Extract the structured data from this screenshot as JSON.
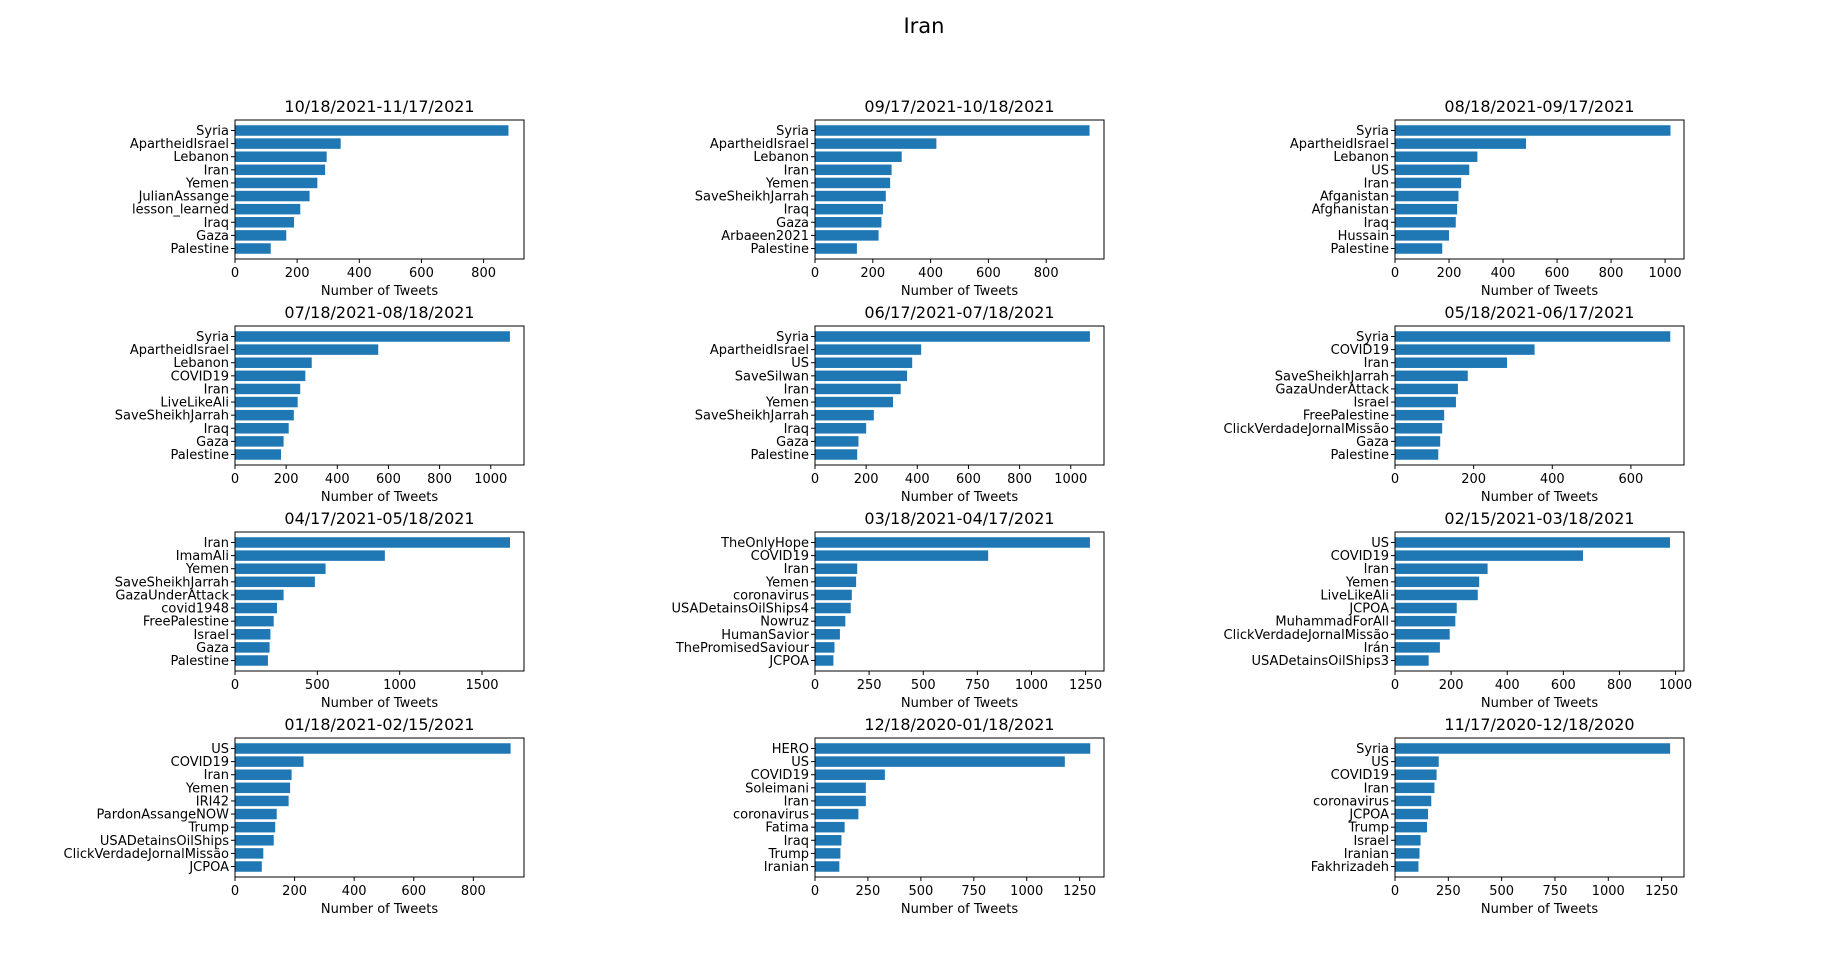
{
  "figure": {
    "title": "Iran"
  },
  "colors": {
    "bar": "#1f77b4",
    "axis": "#000000",
    "background": "#ffffff"
  },
  "chart_data": [
    {
      "type": "bar",
      "orientation": "horizontal",
      "title": "10/18/2021-11/17/2021",
      "xlabel": "Number of Tweets",
      "ylabel": "",
      "categories": [
        "Syria",
        "ApartheidIsrael",
        "Lebanon",
        "Iran",
        "Yemen",
        "JulianAssange",
        "lesson_learned",
        "Iraq",
        "Gaza",
        "Palestine"
      ],
      "values": [
        880,
        340,
        295,
        290,
        265,
        240,
        210,
        190,
        165,
        115
      ],
      "xlim": [
        0,
        930
      ],
      "xticks": [
        0,
        200,
        400,
        600,
        800
      ],
      "grid": false
    },
    {
      "type": "bar",
      "orientation": "horizontal",
      "title": "09/17/2021-10/18/2021",
      "xlabel": "Number of Tweets",
      "ylabel": "",
      "categories": [
        "Syria",
        "ApartheidIsrael",
        "Lebanon",
        "Iran",
        "Yemen",
        "SaveSheikhJarrah",
        "Iraq",
        "Gaza",
        "Arbaeen2021",
        "Palestine"
      ],
      "values": [
        950,
        420,
        300,
        265,
        260,
        245,
        235,
        230,
        220,
        145
      ],
      "xlim": [
        0,
        1000
      ],
      "xticks": [
        0,
        200,
        400,
        600,
        800
      ],
      "grid": false
    },
    {
      "type": "bar",
      "orientation": "horizontal",
      "title": "08/18/2021-09/17/2021",
      "xlabel": "Number of Tweets",
      "ylabel": "",
      "categories": [
        "Syria",
        "ApartheidIsrael",
        "Lebanon",
        "US",
        "Iran",
        "Afganistan",
        "Afghanistan",
        "Iraq",
        "Hussain",
        "Palestine"
      ],
      "values": [
        1020,
        485,
        305,
        275,
        245,
        235,
        230,
        225,
        200,
        175
      ],
      "xlim": [
        0,
        1070
      ],
      "xticks": [
        0,
        200,
        400,
        600,
        800,
        1000
      ],
      "grid": false
    },
    {
      "type": "bar",
      "orientation": "horizontal",
      "title": "07/18/2021-08/18/2021",
      "xlabel": "Number of Tweets",
      "ylabel": "",
      "categories": [
        "Syria",
        "ApartheidIsrael",
        "Lebanon",
        "COVID19",
        "Iran",
        "LiveLikeAli",
        "SaveSheikhJarrah",
        "Iraq",
        "Gaza",
        "Palestine"
      ],
      "values": [
        1075,
        560,
        300,
        275,
        255,
        245,
        230,
        210,
        190,
        180
      ],
      "xlim": [
        0,
        1130
      ],
      "xticks": [
        0,
        200,
        400,
        600,
        800,
        1000
      ],
      "grid": false
    },
    {
      "type": "bar",
      "orientation": "horizontal",
      "title": "06/17/2021-07/18/2021",
      "xlabel": "Number of Tweets",
      "ylabel": "",
      "categories": [
        "Syria",
        "ApartheidIsrael",
        "US",
        "SaveSilwan",
        "Iran",
        "Yemen",
        "SaveSheikhJarrah",
        "Iraq",
        "Gaza",
        "Palestine"
      ],
      "values": [
        1075,
        415,
        380,
        360,
        335,
        305,
        230,
        200,
        170,
        165
      ],
      "xlim": [
        0,
        1130
      ],
      "xticks": [
        0,
        200,
        400,
        600,
        800,
        1000
      ],
      "grid": false
    },
    {
      "type": "bar",
      "orientation": "horizontal",
      "title": "05/18/2021-06/17/2021",
      "xlabel": "Number of Tweets",
      "ylabel": "",
      "categories": [
        "Syria",
        "COVID19",
        "Iran",
        "SaveSheikhJarrah",
        "GazaUnderAttack",
        "Israel",
        "FreePalestine",
        "ClickVerdadeJornalMissão",
        "Gaza",
        "Palestine"
      ],
      "values": [
        700,
        355,
        285,
        185,
        160,
        155,
        125,
        120,
        115,
        110
      ],
      "xlim": [
        0,
        735
      ],
      "xticks": [
        0,
        200,
        400,
        600
      ],
      "grid": false
    },
    {
      "type": "bar",
      "orientation": "horizontal",
      "title": "04/17/2021-05/18/2021",
      "xlabel": "Number of Tweets",
      "ylabel": "",
      "categories": [
        "Iran",
        "ImamAli",
        "Yemen",
        "SaveSheikhJarrah",
        "GazaUnderAttack",
        "covid1948",
        "FreePalestine",
        "Israel",
        "Gaza",
        "Palestine"
      ],
      "values": [
        1670,
        910,
        550,
        485,
        295,
        255,
        235,
        215,
        210,
        200
      ],
      "xlim": [
        0,
        1755
      ],
      "xticks": [
        0,
        500,
        1000,
        1500
      ],
      "grid": false
    },
    {
      "type": "bar",
      "orientation": "horizontal",
      "title": "03/18/2021-04/17/2021",
      "xlabel": "Number of Tweets",
      "ylabel": "",
      "categories": [
        "TheOnlyHope",
        "COVID19",
        "Iran",
        "Yemen",
        "coronavirus",
        "USADetainsOilShips4",
        "Nowruz",
        "HumanSavior",
        "ThePromisedSaviour",
        "JCPOA"
      ],
      "values": [
        1270,
        800,
        195,
        190,
        170,
        165,
        140,
        115,
        90,
        85
      ],
      "xlim": [
        0,
        1335
      ],
      "xticks": [
        0,
        250,
        500,
        750,
        1000,
        1250
      ],
      "grid": false
    },
    {
      "type": "bar",
      "orientation": "horizontal",
      "title": "02/15/2021-03/18/2021",
      "xlabel": "Number of Tweets",
      "ylabel": "",
      "categories": [
        "US",
        "COVID19",
        "Iran",
        "Yemen",
        "LiveLikeAli",
        "JCPOA",
        "MuhammadForAll",
        "ClickVerdadeJornalMissão",
        "Irán",
        "USADetainsOilShips3"
      ],
      "values": [
        980,
        670,
        330,
        300,
        295,
        220,
        215,
        195,
        160,
        120
      ],
      "xlim": [
        0,
        1030
      ],
      "xticks": [
        0,
        200,
        400,
        600,
        800,
        1000
      ],
      "grid": false
    },
    {
      "type": "bar",
      "orientation": "horizontal",
      "title": "01/18/2021-02/15/2021",
      "xlabel": "Number of Tweets",
      "ylabel": "",
      "categories": [
        "US",
        "COVID19",
        "Iran",
        "Yemen",
        "IRI42",
        "PardonAssangeNOW",
        "Trump",
        "USADetainsOilShips",
        "ClickVerdadeJornalMissão",
        "JCPOA"
      ],
      "values": [
        925,
        230,
        190,
        185,
        180,
        140,
        135,
        130,
        95,
        90
      ],
      "xlim": [
        0,
        970
      ],
      "xticks": [
        0,
        200,
        400,
        600,
        800
      ],
      "grid": false
    },
    {
      "type": "bar",
      "orientation": "horizontal",
      "title": "12/18/2020-01/18/2021",
      "xlabel": "Number of Tweets",
      "ylabel": "",
      "categories": [
        "HERO",
        "US",
        "COVID19",
        "Soleimani",
        "Iran",
        "coronavirus",
        "Fatima",
        "Iraq",
        "Trump",
        "Iranian"
      ],
      "values": [
        1300,
        1180,
        330,
        240,
        240,
        205,
        140,
        125,
        120,
        115
      ],
      "xlim": [
        0,
        1365
      ],
      "xticks": [
        0,
        250,
        500,
        750,
        1000,
        1250
      ],
      "grid": false
    },
    {
      "type": "bar",
      "orientation": "horizontal",
      "title": "11/17/2020-12/18/2020",
      "xlabel": "Number of Tweets",
      "ylabel": "",
      "categories": [
        "Syria",
        "US",
        "COVID19",
        "Iran",
        "coronavirus",
        "JCPOA",
        "Trump",
        "Israel",
        "Iranian",
        "Fakhrizadeh"
      ],
      "values": [
        1290,
        205,
        195,
        185,
        170,
        155,
        150,
        120,
        115,
        110
      ],
      "xlim": [
        0,
        1355
      ],
      "xticks": [
        0,
        250,
        500,
        750,
        1000,
        1250
      ],
      "grid": false
    }
  ]
}
